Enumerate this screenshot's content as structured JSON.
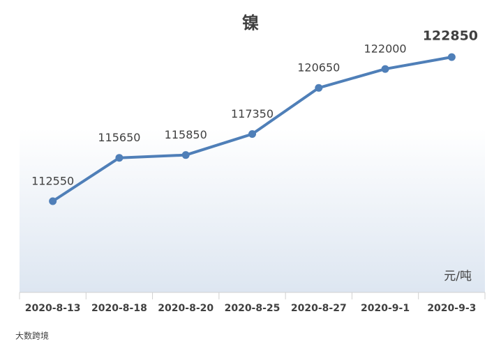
{
  "chart_data": {
    "type": "line",
    "title": "镍",
    "unit": "元/吨",
    "watermark": "大数跨境",
    "categories": [
      "2020-8-13",
      "2020-8-18",
      "2020-8-20",
      "2020-8-25",
      "2020-8-27",
      "2020-9-1",
      "2020-9-3"
    ],
    "series": [
      {
        "name": "镍",
        "color": "#4f7fb8",
        "values": [
          112550,
          115650,
          115850,
          117350,
          120650,
          122000,
          122850
        ]
      }
    ]
  }
}
